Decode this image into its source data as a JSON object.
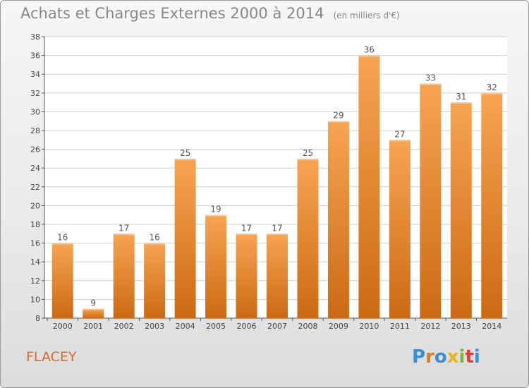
{
  "header": {
    "title": "Achats et Charges Externes 2000 à 2014",
    "unit": "(en milliers d'€)"
  },
  "footer": {
    "commune": "FLACEY",
    "logo_text": "Proxiti"
  },
  "colors": {
    "bar_light": "#f7a452",
    "bar_dark": "#cc6a14",
    "grid": "#d0d0d0",
    "commune": "#d86a2a"
  },
  "chart_data": {
    "type": "bar",
    "categories": [
      "2000",
      "2001",
      "2002",
      "2003",
      "2004",
      "2005",
      "2006",
      "2007",
      "2008",
      "2009",
      "2010",
      "2011",
      "2012",
      "2013",
      "2014"
    ],
    "values": [
      16,
      9,
      17,
      16,
      25,
      19,
      17,
      17,
      25,
      29,
      36,
      27,
      33,
      31,
      32
    ],
    "title": "Achats et Charges Externes 2000 à 2014",
    "ylim": [
      8,
      38
    ],
    "yticks": [
      8,
      10,
      12,
      14,
      16,
      18,
      20,
      22,
      24,
      26,
      28,
      30,
      32,
      34,
      36,
      38
    ],
    "grid": true,
    "data_labels": true
  }
}
